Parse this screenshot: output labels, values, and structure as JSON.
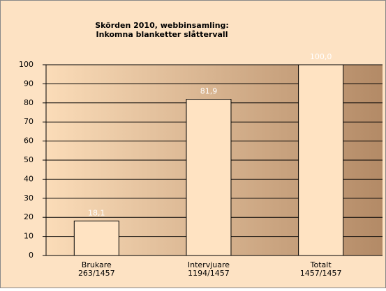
{
  "chart_data": {
    "type": "bar",
    "title": [
      "Skörden 2010, webbinsamling:",
      "Inkomna blanketter slåttervall"
    ],
    "categories": [
      [
        "Brukare",
        "263/1457"
      ],
      [
        "Intervjuare",
        "1194/1457"
      ],
      [
        "Totalt",
        "1457/1457"
      ]
    ],
    "values": [
      18.1,
      81.9,
      100.0
    ],
    "value_labels": [
      "18,1",
      "81,9",
      "100,0"
    ],
    "color": "#ffe3c2",
    "ylim": [
      0,
      100
    ],
    "yticks": [
      0,
      10,
      20,
      30,
      40,
      50,
      60,
      70,
      80,
      90,
      100
    ],
    "grid": true
  }
}
